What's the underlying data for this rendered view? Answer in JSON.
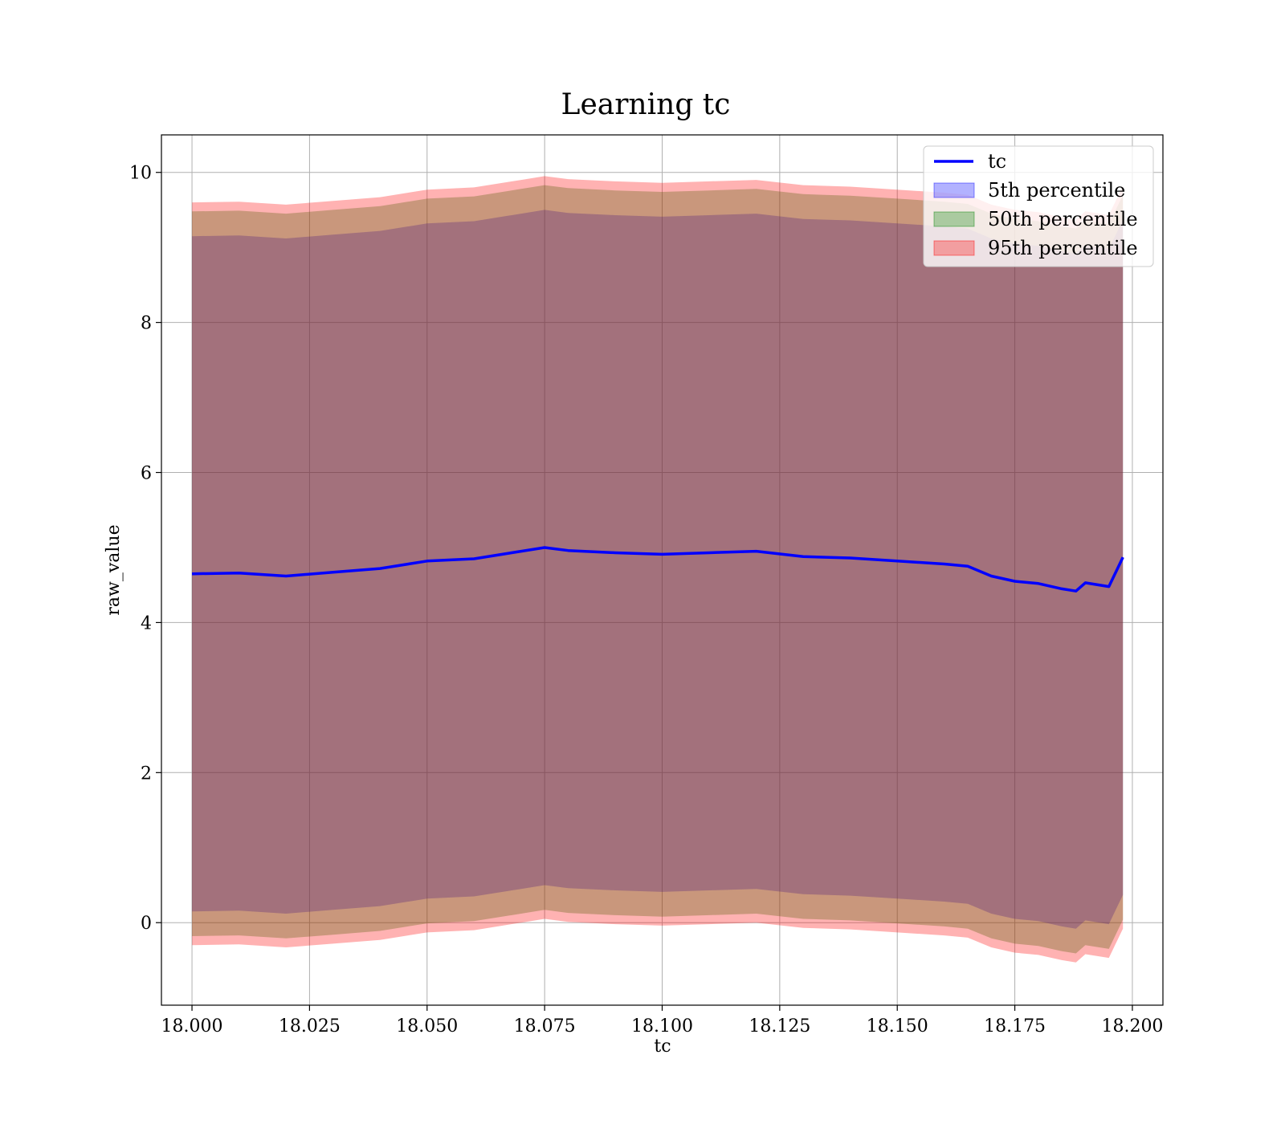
{
  "chart_data": {
    "type": "area",
    "title": "Learning tc",
    "xlabel": "tc",
    "ylabel": "raw_value",
    "xlim": [
      17.9935,
      18.2065
    ],
    "ylim": [
      -1.1,
      10.5
    ],
    "grid": true,
    "legend_position": "top-right",
    "xticks": [
      18.0,
      18.025,
      18.05,
      18.075,
      18.1,
      18.125,
      18.15,
      18.175,
      18.2
    ],
    "xtick_labels": [
      "18.000",
      "18.025",
      "18.050",
      "18.075",
      "18.100",
      "18.125",
      "18.150",
      "18.175",
      "18.200"
    ],
    "yticks": [
      0,
      2,
      4,
      6,
      8,
      10
    ],
    "ytick_labels": [
      "0",
      "2",
      "4",
      "6",
      "8",
      "10"
    ],
    "x": [
      18.0,
      18.01,
      18.02,
      18.03,
      18.04,
      18.05,
      18.06,
      18.07,
      18.075,
      18.08,
      18.09,
      18.1,
      18.11,
      18.12,
      18.13,
      18.14,
      18.15,
      18.16,
      18.165,
      18.17,
      18.175,
      18.18,
      18.185,
      18.188,
      18.19,
      18.195,
      18.198
    ],
    "series": [
      {
        "name": "tc",
        "kind": "line",
        "color": "#0000ff",
        "values": [
          4.65,
          4.66,
          4.62,
          4.67,
          4.72,
          4.82,
          4.85,
          4.95,
          5.0,
          4.96,
          4.93,
          4.91,
          4.93,
          4.95,
          4.88,
          4.86,
          4.82,
          4.78,
          4.75,
          4.62,
          4.55,
          4.52,
          4.45,
          4.42,
          4.53,
          4.48,
          4.87
        ]
      },
      {
        "name": "5th percentile",
        "kind": "band",
        "color": "#0000ff",
        "lower": [
          0.15,
          0.16,
          0.12,
          0.17,
          0.22,
          0.32,
          0.35,
          0.45,
          0.5,
          0.46,
          0.43,
          0.41,
          0.43,
          0.45,
          0.38,
          0.36,
          0.32,
          0.28,
          0.25,
          0.12,
          0.05,
          0.02,
          -0.05,
          -0.08,
          0.03,
          -0.02,
          0.37
        ],
        "upper": [
          9.15,
          9.16,
          9.12,
          9.17,
          9.22,
          9.32,
          9.35,
          9.45,
          9.5,
          9.46,
          9.43,
          9.41,
          9.43,
          9.45,
          9.38,
          9.36,
          9.32,
          9.28,
          9.25,
          9.12,
          9.05,
          9.02,
          8.95,
          8.92,
          9.03,
          8.98,
          9.37
        ]
      },
      {
        "name": "50th percentile",
        "kind": "band",
        "color": "#008000",
        "lower": [
          -0.18,
          -0.17,
          -0.21,
          -0.16,
          -0.11,
          -0.01,
          0.02,
          0.12,
          0.17,
          0.13,
          0.1,
          0.08,
          0.1,
          0.12,
          0.05,
          0.03,
          -0.01,
          -0.05,
          -0.08,
          -0.21,
          -0.28,
          -0.31,
          -0.38,
          -0.41,
          -0.3,
          -0.35,
          0.04
        ],
        "upper": [
          9.48,
          9.49,
          9.45,
          9.5,
          9.55,
          9.65,
          9.68,
          9.78,
          9.83,
          9.79,
          9.76,
          9.74,
          9.76,
          9.78,
          9.71,
          9.69,
          9.65,
          9.61,
          9.58,
          9.45,
          9.38,
          9.35,
          9.28,
          9.25,
          9.36,
          9.31,
          9.7
        ]
      },
      {
        "name": "95th percentile",
        "kind": "band",
        "color": "#ff0000",
        "lower": [
          -0.3,
          -0.29,
          -0.33,
          -0.28,
          -0.23,
          -0.13,
          -0.1,
          0.0,
          0.05,
          0.01,
          -0.02,
          -0.04,
          -0.02,
          0.0,
          -0.07,
          -0.09,
          -0.13,
          -0.17,
          -0.2,
          -0.33,
          -0.4,
          -0.43,
          -0.5,
          -0.53,
          -0.42,
          -0.47,
          -0.08
        ],
        "upper": [
          9.6,
          9.61,
          9.57,
          9.62,
          9.67,
          9.77,
          9.8,
          9.9,
          9.95,
          9.91,
          9.88,
          9.86,
          9.88,
          9.9,
          9.83,
          9.81,
          9.77,
          9.73,
          9.7,
          9.57,
          9.5,
          9.47,
          9.4,
          9.37,
          9.48,
          9.43,
          9.82
        ]
      }
    ]
  }
}
